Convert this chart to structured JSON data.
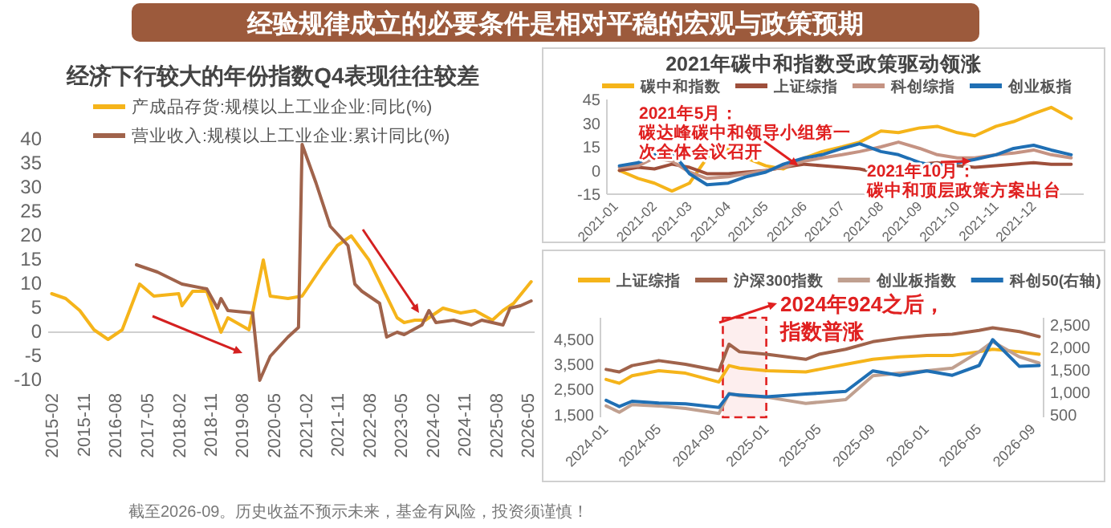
{
  "chart_data": [
    {
      "type": "line",
      "title": "经验规律成立的必要条件是相对平稳的宏观与政策预期",
      "subtitle": "经济下行较大的年份指数Q4表现往往较差",
      "legend": "top",
      "xlim": [
        "2015-01",
        "2026-07"
      ],
      "ylim": [
        -10,
        40
      ],
      "yticks": [
        -10,
        -5,
        0,
        5,
        10,
        15,
        20,
        25,
        30,
        35,
        40
      ],
      "xticks": [
        "2015-02",
        "2015-11",
        "2016-08",
        "2017-05",
        "2018-02",
        "2018-11",
        "2019-08",
        "2020-05",
        "2021-02",
        "2021-11",
        "2022-08",
        "2023-05",
        "2024-02",
        "2024-11",
        "2025-08",
        "2026-05"
      ],
      "series": [
        {
          "name": "产成品存货:规模以上工业企业:同比(%)",
          "color": "#f5b41a",
          "x": [
            "2015-02",
            "2015-06",
            "2015-10",
            "2016-02",
            "2016-06",
            "2016-10",
            "2017-03",
            "2017-07",
            "2018-02",
            "2018-03",
            "2018-06",
            "2018-10",
            "2019-02",
            "2019-04",
            "2019-10",
            "2020-02",
            "2020-04",
            "2020-09",
            "2021-01",
            "2021-07",
            "2021-11",
            "2022-03",
            "2022-08",
            "2022-12",
            "2023-04",
            "2023-06",
            "2023-09",
            "2023-12",
            "2024-05",
            "2024-10",
            "2025-02",
            "2025-07",
            "2025-10",
            "2026-01",
            "2026-06"
          ],
          "values": [
            8,
            7,
            4.5,
            0.5,
            -1.5,
            0.5,
            10,
            7.5,
            8,
            5.5,
            8.5,
            8.5,
            0,
            3,
            0.5,
            15,
            7.5,
            7,
            7.5,
            14,
            18,
            20,
            15,
            9,
            3,
            2,
            2.5,
            2.5,
            5,
            4,
            4.5,
            2.5,
            4.5,
            6,
            10.5
          ]
        },
        {
          "name": "营业收入:规模以上工业企业:累计同比(%)",
          "color": "#a0634b",
          "x": [
            "2017-02",
            "2017-08",
            "2018-03",
            "2018-10",
            "2019-01",
            "2019-02",
            "2019-04",
            "2019-11",
            "2020-01",
            "2020-04",
            "2020-09",
            "2020-12",
            "2021-01",
            "2021-05",
            "2021-09",
            "2022-02",
            "2022-04",
            "2022-06",
            "2022-11",
            "2023-01",
            "2023-04",
            "2023-06",
            "2023-11",
            "2024-01",
            "2024-03",
            "2024-08",
            "2025-01",
            "2025-04",
            "2025-10",
            "2025-12",
            "2026-03",
            "2026-06"
          ],
          "values": [
            14,
            12.5,
            10,
            9,
            5,
            7,
            4.5,
            4,
            -10,
            -5,
            -1,
            1,
            39,
            31,
            22,
            18,
            10,
            8.5,
            6,
            -1,
            0,
            -0.5,
            1.5,
            4.5,
            2,
            2.5,
            1.5,
            2.5,
            1.5,
            5,
            5.5,
            6.5
          ]
        }
      ],
      "annotations": [
        "截至2026-09。历史收益不预示未来，基金有风险，投资须谨慎！"
      ]
    },
    {
      "type": "line",
      "title": "2021年碳中和指数受政策驱动领涨",
      "legend": "top",
      "xlim": [
        "2020-12-25",
        "2022-01-10"
      ],
      "ylim": [
        -15,
        45
      ],
      "yticks": [
        -15,
        0,
        15,
        30,
        45
      ],
      "xticks": [
        "2021-01",
        "2021-02",
        "2021-03",
        "2021-04",
        "2021-05",
        "2021-06",
        "2021-07",
        "2021-08",
        "2021-09",
        "2021-10",
        "2021-11",
        "2021-12"
      ],
      "x": [
        "2021-01-04",
        "2021-01-19",
        "2021-02-01",
        "2021-02-15",
        "2021-03-01",
        "2021-03-15",
        "2021-04-01",
        "2021-04-15",
        "2021-05-01",
        "2021-05-15",
        "2021-06-01",
        "2021-06-15",
        "2021-07-01",
        "2021-07-15",
        "2021-08-01",
        "2021-08-15",
        "2021-09-01",
        "2021-09-15",
        "2021-10-01",
        "2021-10-15",
        "2021-11-01",
        "2021-11-15",
        "2021-12-01",
        "2021-12-15",
        "2021-12-31"
      ],
      "series": [
        {
          "name": "碳中和指数",
          "color": "#f5b41a",
          "values": [
            0,
            -5,
            -8,
            -13,
            -8,
            8,
            14,
            8,
            3,
            1,
            8,
            12,
            15,
            18,
            25,
            24,
            27,
            28,
            24,
            22,
            28,
            31,
            36,
            40,
            33
          ]
        },
        {
          "name": "上证综指",
          "color": "#9e4f3b",
          "values": [
            0,
            2,
            1,
            4,
            2,
            -2,
            -2,
            -1,
            0,
            2,
            4,
            3,
            2,
            1,
            -2,
            0,
            4,
            5,
            3,
            2,
            3,
            4,
            5,
            4,
            4
          ]
        },
        {
          "name": "科创综指",
          "color": "#c59383",
          "values": [
            2,
            3,
            8,
            6,
            -1,
            -5,
            -4,
            -2,
            0,
            2,
            6,
            8,
            10,
            12,
            15,
            18,
            14,
            10,
            8,
            8,
            10,
            11,
            13,
            10,
            8
          ]
        },
        {
          "name": "创业板指",
          "color": "#1f6fb4",
          "values": [
            3,
            5,
            10,
            12,
            -2,
            -9,
            -8,
            -4,
            -1,
            4,
            8,
            10,
            14,
            17,
            12,
            10,
            5,
            3,
            5,
            7,
            10,
            14,
            16,
            13,
            10
          ]
        }
      ],
      "annotations": [
        {
          "text": "2021年5月：碳达峰碳中和领导小组第一次全体会议召开",
          "x": "2021-05-27",
          "y": 3
        },
        {
          "text": "2021年10月：碳中和顶层政策方案出台",
          "x": "2021-10-12",
          "y": 6
        }
      ]
    },
    {
      "type": "line",
      "legend": "top",
      "xlim": [
        "2023-12-20",
        "2026-09-25"
      ],
      "ylim": [
        1400,
        5350
      ],
      "y2lim": [
        440,
        2670
      ],
      "yticks": [
        {
          "value": 1500,
          "label": "1,500"
        },
        {
          "value": 2500,
          "label": "2,500"
        },
        {
          "value": 3500,
          "label": "3,500"
        },
        {
          "value": 4500,
          "label": "4,500"
        }
      ],
      "y2ticks": [
        500,
        {
          "value": 1000,
          "label": "1,000"
        },
        {
          "value": 1500,
          "label": "1,500"
        },
        {
          "value": 2000,
          "label": "2,000"
        },
        {
          "value": 2500,
          "label": "2,500"
        }
      ],
      "xticks": [
        "2024-01",
        "2024-05",
        "2024-09",
        "2025-01",
        "2025-05",
        "2025-09",
        "2026-01",
        "2026-05",
        "2026-09"
      ],
      "x": [
        "2024-01-02",
        "2024-02-01",
        "2024-03-01",
        "2024-05-01",
        "2024-07-01",
        "2024-09-15",
        "2024-10-08",
        "2024-11-01",
        "2025-01-02",
        "2025-04-01",
        "2025-05-01",
        "2025-07-01",
        "2025-09-01",
        "2025-11-01",
        "2026-01-02",
        "2026-03-01",
        "2026-05-01",
        "2026-06-01",
        "2026-08-01",
        "2026-09-15"
      ],
      "series": [
        {
          "name": "上证综指",
          "color": "#f5b41a",
          "values": [
            2900,
            2750,
            3050,
            3250,
            3150,
            2800,
            3450,
            3350,
            3250,
            3200,
            3300,
            3500,
            3700,
            3800,
            3850,
            3850,
            4000,
            4100,
            4000,
            3900
          ]
        },
        {
          "name": "沪深300指数",
          "color": "#a0634b",
          "values": [
            3300,
            3200,
            3450,
            3650,
            3500,
            3250,
            4300,
            4000,
            3900,
            3700,
            3900,
            4100,
            4400,
            4550,
            4650,
            4700,
            4850,
            4950,
            4800,
            4600
          ]
        },
        {
          "name": "创业板指数",
          "color": "#c0a090",
          "values": [
            1850,
            1600,
            1900,
            1850,
            1750,
            1550,
            2350,
            2250,
            2200,
            1950,
            2000,
            2100,
            3050,
            3150,
            3250,
            3350,
            4000,
            4400,
            3800,
            3550
          ]
        },
        {
          "name": "科创50(右轴)",
          "color": "#1f6fb4",
          "axis": "y2",
          "values": [
            820,
            680,
            800,
            760,
            740,
            660,
            960,
            940,
            900,
            960,
            980,
            1020,
            1480,
            1380,
            1480,
            1380,
            1600,
            2180,
            1580,
            1600
          ]
        }
      ],
      "bands": [
        {
          "axis": "x",
          "from": "2024-09-24",
          "to": "2025-01-01",
          "color": "#e02020",
          "label": "2024年924之后，指数普涨"
        }
      ]
    }
  ]
}
